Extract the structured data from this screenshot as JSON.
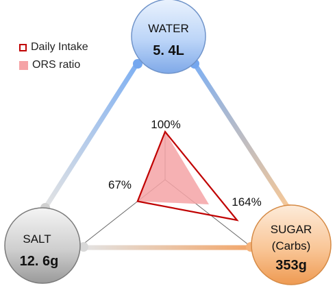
{
  "legend": {
    "daily_intake": "Daily Intake",
    "ors_ratio": "ORS ratio"
  },
  "nodes": {
    "water": {
      "name": "WATER",
      "value": "5. 4L",
      "color": "#a9c8f4"
    },
    "salt": {
      "name": "SALT",
      "value": "12. 6g",
      "color": "#c8c8c8"
    },
    "sugar": {
      "name": "SUGAR",
      "subname": "(Carbs)",
      "value": "353g",
      "color": "#f7c08f"
    }
  },
  "percentages": {
    "water": "100%",
    "salt": "67%",
    "sugar": "164%"
  },
  "chart_data": {
    "type": "radar",
    "axes": [
      "WATER",
      "SALT",
      "SUGAR"
    ],
    "series": [
      {
        "name": "Daily Intake",
        "values": [
          100,
          67,
          164
        ],
        "style": "outline",
        "color": "#c00000"
      },
      {
        "name": "ORS ratio",
        "values": [
          100,
          67,
          100
        ],
        "style": "fill",
        "color": "#f5a3a6"
      }
    ]
  }
}
